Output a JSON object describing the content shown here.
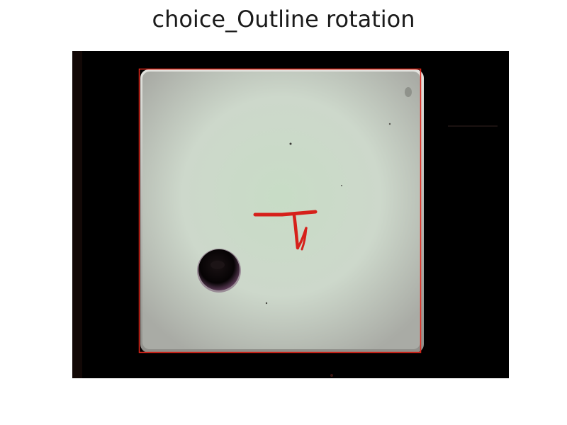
{
  "figure": {
    "title": "choice_Outline rotation"
  },
  "colors": {
    "background": "#000000",
    "die_face": "#cfd7cc",
    "outline": "#e0261b",
    "marker": "#d6201a",
    "pip": "#0a0608"
  },
  "image": {
    "subject": "white die face on black background",
    "marking": "handwritten red character",
    "overlay": "red bounding rectangle outline"
  }
}
